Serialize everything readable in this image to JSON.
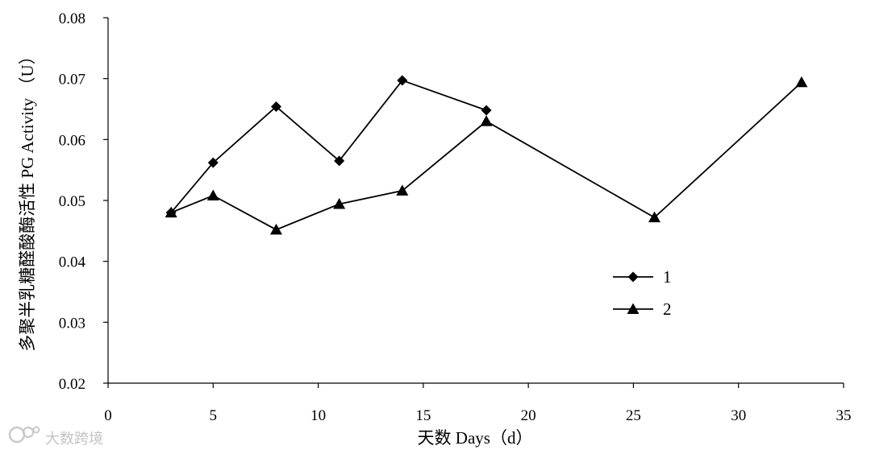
{
  "chart_data": {
    "type": "line",
    "xlabel": "天数 Days（d）",
    "ylabel": "多聚半乳糖醛酸酶活性 PG Activity （U）",
    "xlim": [
      0,
      35
    ],
    "ylim": [
      0.02,
      0.08
    ],
    "xticks": [
      "0",
      "5",
      "10",
      "15",
      "20",
      "25",
      "30",
      "35"
    ],
    "yticks": [
      "0.02",
      "0.03",
      "0.04",
      "0.05",
      "0.06",
      "0.07",
      "0.08"
    ],
    "grid": false,
    "legend_position": "right-middle",
    "series": [
      {
        "name": "1",
        "marker": "diamond",
        "color": "#000000",
        "x": [
          3,
          5,
          8,
          11,
          14,
          18
        ],
        "y": [
          0.048,
          0.0562,
          0.0654,
          0.0565,
          0.0697,
          0.0648
        ]
      },
      {
        "name": "2",
        "marker": "triangle",
        "color": "#000000",
        "x": [
          3,
          5,
          8,
          11,
          14,
          18,
          26,
          33
        ],
        "y": [
          0.048,
          0.0508,
          0.0452,
          0.0494,
          0.0516,
          0.063,
          0.0472,
          0.0694
        ]
      }
    ]
  },
  "watermark": {
    "text": "大数跨境",
    "icon": "brand-logo-icon"
  }
}
